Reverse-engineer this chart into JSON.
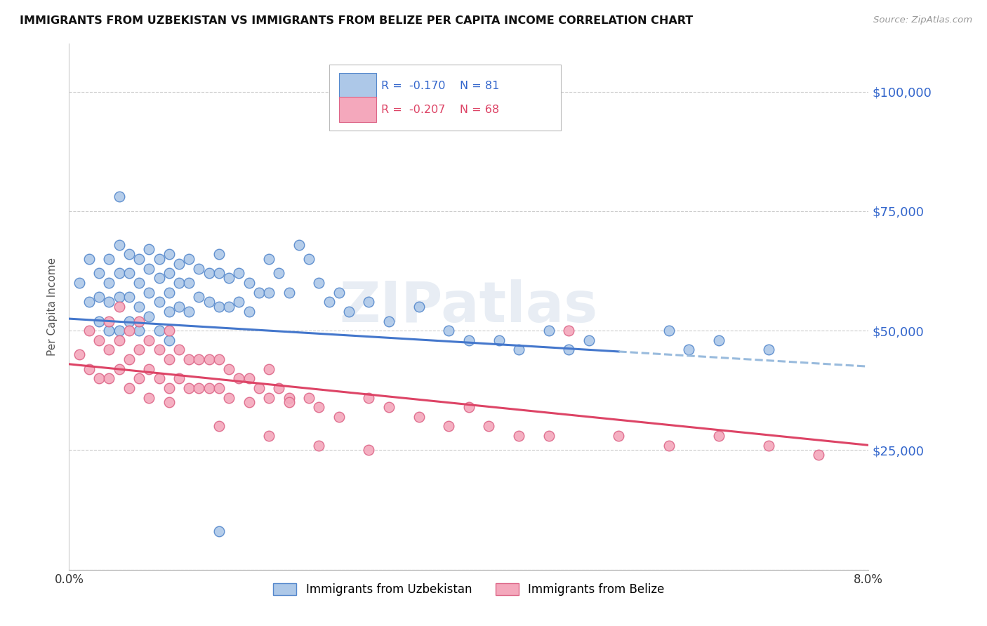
{
  "title": "IMMIGRANTS FROM UZBEKISTAN VS IMMIGRANTS FROM BELIZE PER CAPITA INCOME CORRELATION CHART",
  "source": "Source: ZipAtlas.com",
  "ylabel": "Per Capita Income",
  "xlim": [
    0.0,
    0.08
  ],
  "ylim": [
    0,
    110000
  ],
  "yticks": [
    0,
    25000,
    50000,
    75000,
    100000
  ],
  "xticks": [
    0.0,
    0.02,
    0.04,
    0.06,
    0.08
  ],
  "uzbekistan_color": "#adc8e8",
  "belize_color": "#f4a8bc",
  "uzbekistan_edge": "#5588cc",
  "belize_edge": "#dd6688",
  "trend_uzbekistan_solid": "#4477cc",
  "trend_uzbekistan_dashed": "#99bbdd",
  "trend_belize": "#dd4466",
  "legend_R_uzbekistan": "-0.170",
  "legend_N_uzbekistan": "81",
  "legend_R_belize": "-0.207",
  "legend_N_belize": "68",
  "watermark": "ZIPatlas",
  "uzbekistan_x": [
    0.001,
    0.002,
    0.002,
    0.003,
    0.003,
    0.003,
    0.004,
    0.004,
    0.004,
    0.004,
    0.005,
    0.005,
    0.005,
    0.005,
    0.005,
    0.006,
    0.006,
    0.006,
    0.006,
    0.007,
    0.007,
    0.007,
    0.007,
    0.008,
    0.008,
    0.008,
    0.008,
    0.009,
    0.009,
    0.009,
    0.009,
    0.01,
    0.01,
    0.01,
    0.01,
    0.01,
    0.011,
    0.011,
    0.011,
    0.012,
    0.012,
    0.012,
    0.013,
    0.013,
    0.014,
    0.014,
    0.015,
    0.015,
    0.015,
    0.016,
    0.016,
    0.017,
    0.017,
    0.018,
    0.018,
    0.019,
    0.02,
    0.02,
    0.021,
    0.022,
    0.023,
    0.024,
    0.025,
    0.026,
    0.027,
    0.028,
    0.03,
    0.032,
    0.035,
    0.038,
    0.04,
    0.043,
    0.045,
    0.048,
    0.05,
    0.052,
    0.06,
    0.062,
    0.065,
    0.07,
    0.015
  ],
  "uzbekistan_y": [
    60000,
    65000,
    56000,
    62000,
    57000,
    52000,
    65000,
    60000,
    56000,
    50000,
    78000,
    68000,
    62000,
    57000,
    50000,
    66000,
    62000,
    57000,
    52000,
    65000,
    60000,
    55000,
    50000,
    67000,
    63000,
    58000,
    53000,
    65000,
    61000,
    56000,
    50000,
    66000,
    62000,
    58000,
    54000,
    48000,
    64000,
    60000,
    55000,
    65000,
    60000,
    54000,
    63000,
    57000,
    62000,
    56000,
    66000,
    62000,
    55000,
    61000,
    55000,
    62000,
    56000,
    60000,
    54000,
    58000,
    65000,
    58000,
    62000,
    58000,
    68000,
    65000,
    60000,
    56000,
    58000,
    54000,
    56000,
    52000,
    55000,
    50000,
    48000,
    48000,
    46000,
    50000,
    46000,
    48000,
    50000,
    46000,
    48000,
    46000,
    8000
  ],
  "belize_x": [
    0.001,
    0.002,
    0.002,
    0.003,
    0.003,
    0.004,
    0.004,
    0.004,
    0.005,
    0.005,
    0.005,
    0.006,
    0.006,
    0.006,
    0.007,
    0.007,
    0.007,
    0.008,
    0.008,
    0.008,
    0.009,
    0.009,
    0.01,
    0.01,
    0.01,
    0.011,
    0.011,
    0.012,
    0.012,
    0.013,
    0.013,
    0.014,
    0.014,
    0.015,
    0.015,
    0.016,
    0.016,
    0.017,
    0.018,
    0.018,
    0.019,
    0.02,
    0.02,
    0.021,
    0.022,
    0.024,
    0.025,
    0.027,
    0.03,
    0.032,
    0.035,
    0.038,
    0.04,
    0.042,
    0.045,
    0.048,
    0.05,
    0.055,
    0.06,
    0.065,
    0.07,
    0.075,
    0.022,
    0.01,
    0.015,
    0.02,
    0.025,
    0.03
  ],
  "belize_y": [
    45000,
    50000,
    42000,
    48000,
    40000,
    52000,
    46000,
    40000,
    55000,
    48000,
    42000,
    50000,
    44000,
    38000,
    52000,
    46000,
    40000,
    48000,
    42000,
    36000,
    46000,
    40000,
    50000,
    44000,
    38000,
    46000,
    40000,
    44000,
    38000,
    44000,
    38000,
    44000,
    38000,
    44000,
    38000,
    42000,
    36000,
    40000,
    40000,
    35000,
    38000,
    42000,
    36000,
    38000,
    36000,
    36000,
    34000,
    32000,
    36000,
    34000,
    32000,
    30000,
    34000,
    30000,
    28000,
    28000,
    50000,
    28000,
    26000,
    28000,
    26000,
    24000,
    35000,
    35000,
    30000,
    28000,
    26000,
    25000
  ]
}
